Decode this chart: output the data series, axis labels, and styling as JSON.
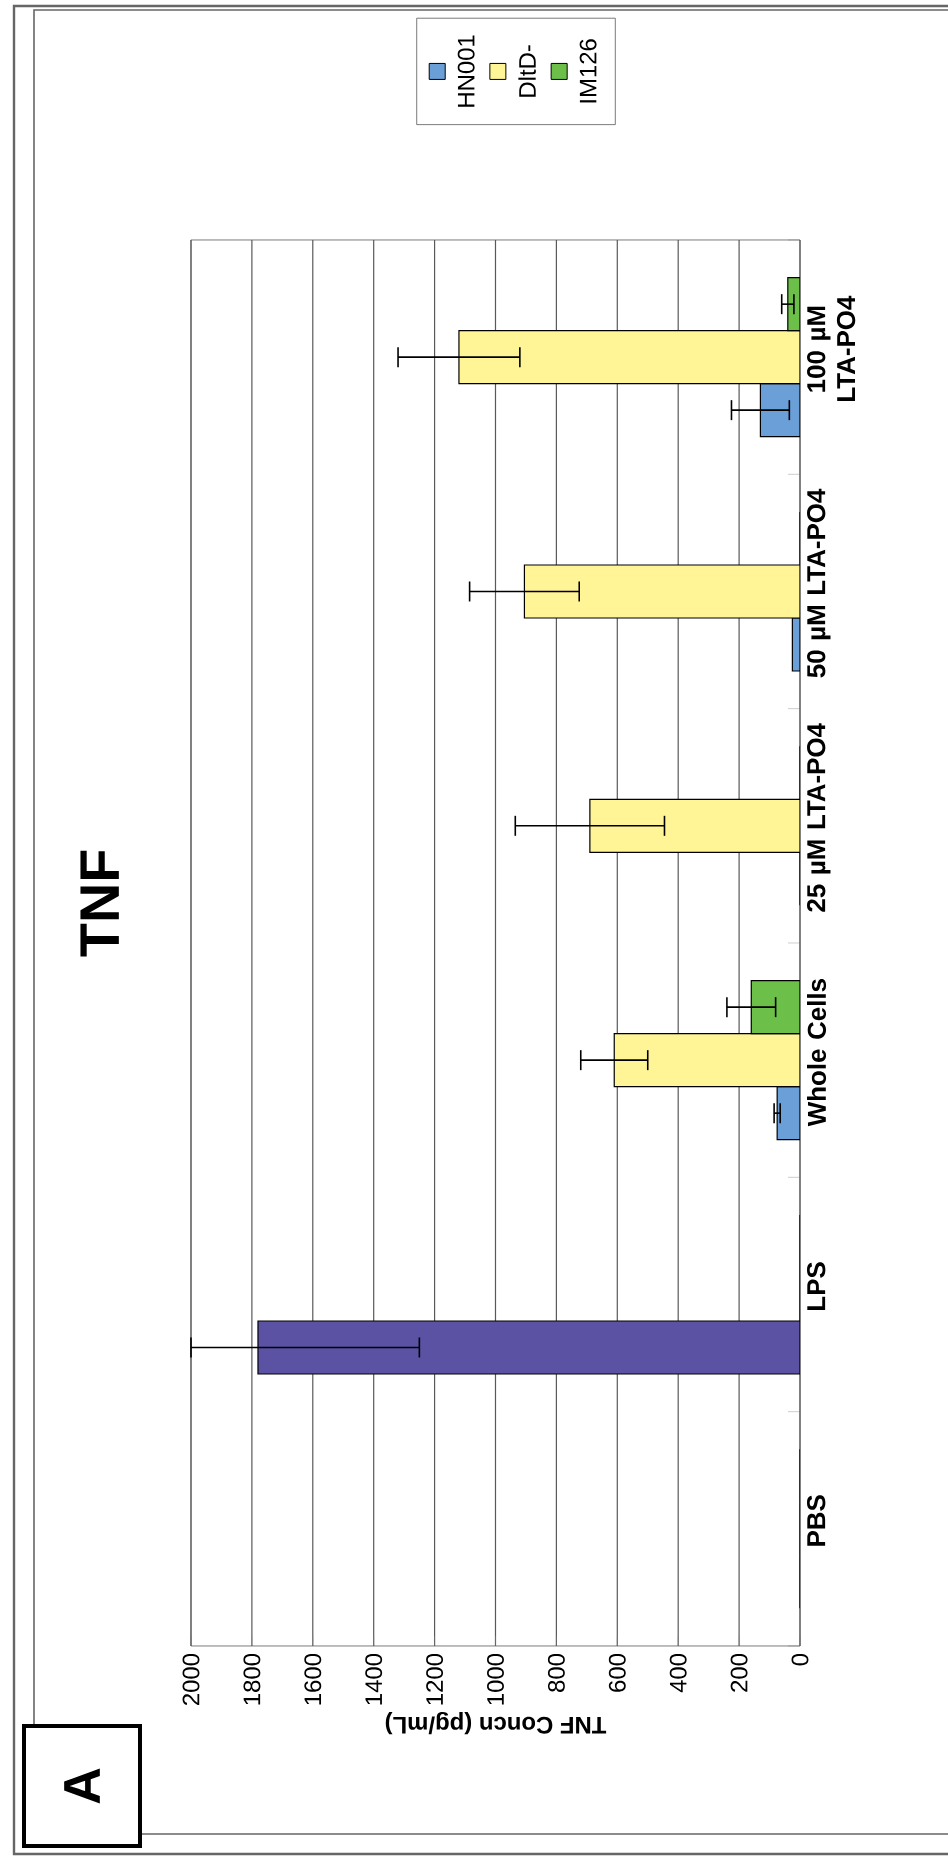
{
  "chart_data": {
    "type": "bar",
    "orientation": "horizontal",
    "title": "TNF",
    "xlabel": "TNF Concn (pg/mL)",
    "categories": [
      "100 µM LTA-PO4",
      "50 µM LTA-PO4",
      "25 µM LTA-PO4",
      "Whole Cells",
      "LPS",
      "PBS"
    ],
    "series": [
      {
        "name": "HN001",
        "color": "#6a9fd8",
        "colors": [
          "#6a9fd8",
          "#6a9fd8",
          "#6a9fd8",
          "#6a9fd8",
          "#5b52a4",
          "#6a9fd8"
        ],
        "values": [
          130,
          25,
          0,
          75,
          1780,
          0
        ],
        "errors": [
          95,
          null,
          null,
          10,
          [
            1250,
            2000
          ],
          null
        ]
      },
      {
        "name": "DltD-",
        "color": "#fff597",
        "values": [
          1120,
          905,
          690,
          610,
          0,
          0
        ],
        "errors": [
          200,
          180,
          245,
          110,
          null,
          null
        ]
      },
      {
        "name": "IM126",
        "color": "#6cc04a",
        "values": [
          40,
          0,
          0,
          160,
          0,
          0
        ],
        "errors": [
          20,
          null,
          null,
          80,
          null,
          null
        ]
      }
    ],
    "xlim": [
      2000,
      0
    ],
    "xticks": [
      0,
      200,
      400,
      600,
      800,
      1000,
      1200,
      1400,
      1600,
      1800,
      2000
    ],
    "grid": "x",
    "legend": "top",
    "annotations": [
      "A"
    ]
  }
}
